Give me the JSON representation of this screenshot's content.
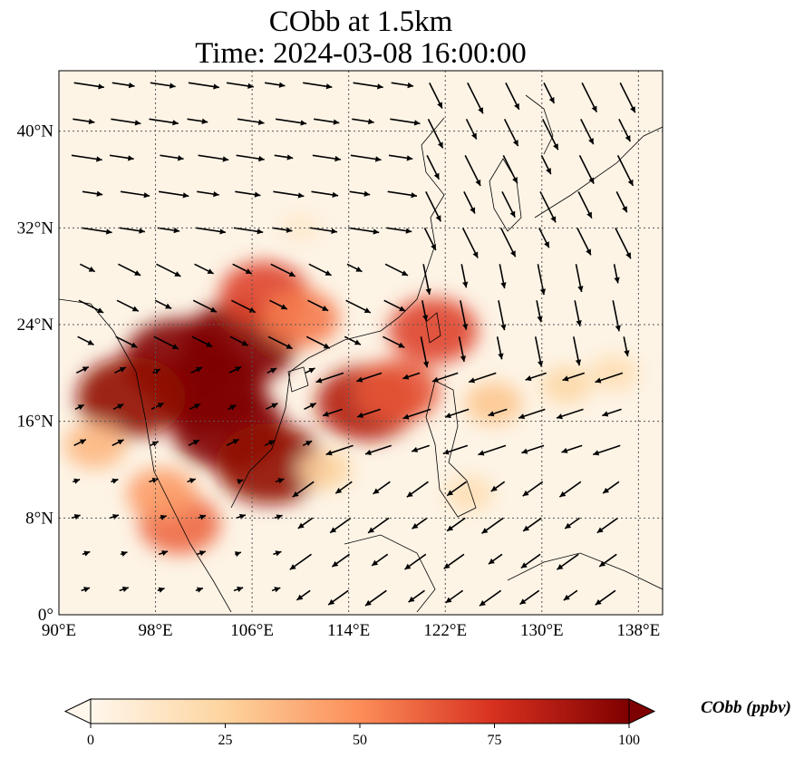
{
  "title": {
    "line1": "CObb at 1.5km",
    "line2": "Time: 2024-03-08 16:00:00"
  },
  "map": {
    "lon_range": [
      90,
      140
    ],
    "lat_range": [
      0,
      45
    ],
    "gridlines": true,
    "x_ticks": [
      {
        "value": 90,
        "label": "90°E"
      },
      {
        "value": 98,
        "label": "98°E"
      },
      {
        "value": 106,
        "label": "106°E"
      },
      {
        "value": 114,
        "label": "114°E"
      },
      {
        "value": 122,
        "label": "122°E"
      },
      {
        "value": 130,
        "label": "130°E"
      },
      {
        "value": 138,
        "label": "138°E"
      }
    ],
    "y_ticks": [
      {
        "value": 0,
        "label": "0°"
      },
      {
        "value": 8,
        "label": "8°N"
      },
      {
        "value": 16,
        "label": "16°N"
      },
      {
        "value": 24,
        "label": "24°N"
      },
      {
        "value": 32,
        "label": "32°N"
      },
      {
        "value": 40,
        "label": "40°N"
      }
    ]
  },
  "colorbar": {
    "label": "CObb (ppbv)",
    "min": 0,
    "max": 100,
    "extend": "both",
    "colormap": "OrRd",
    "ticks": [
      {
        "value": 0,
        "label": "0"
      },
      {
        "value": 25,
        "label": "25"
      },
      {
        "value": 50,
        "label": "50"
      },
      {
        "value": 75,
        "label": "75"
      },
      {
        "value": 100,
        "label": "100"
      }
    ]
  },
  "colors": {
    "background": "#fdf4e6",
    "low": "#fdd7a8",
    "mid": "#ef6a4b",
    "high": "#7a0000",
    "wind": "#000000",
    "grid": "#555555"
  },
  "plumes": [
    {
      "lon": 102.5,
      "lat": 18.5,
      "level": 100
    },
    {
      "lon": 100.0,
      "lat": 21.0,
      "level": 100
    },
    {
      "lon": 105.0,
      "lat": 22.5,
      "level": 100
    },
    {
      "lon": 104.0,
      "lat": 15.5,
      "level": 100
    },
    {
      "lon": 107.5,
      "lat": 12.5,
      "level": 95
    },
    {
      "lon": 96.0,
      "lat": 18.0,
      "level": 95
    },
    {
      "lon": 107.0,
      "lat": 26.5,
      "level": 70
    },
    {
      "lon": 110.0,
      "lat": 24.5,
      "level": 55
    },
    {
      "lon": 115.5,
      "lat": 17.5,
      "level": 85
    },
    {
      "lon": 118.0,
      "lat": 18.5,
      "level": 65
    },
    {
      "lon": 121.0,
      "lat": 23.5,
      "level": 70
    },
    {
      "lon": 100.0,
      "lat": 7.5,
      "level": 60
    },
    {
      "lon": 98.5,
      "lat": 10.0,
      "level": 45
    },
    {
      "lon": 126.0,
      "lat": 17.5,
      "level": 30
    },
    {
      "lon": 132.0,
      "lat": 19.0,
      "level": 22
    },
    {
      "lon": 136.0,
      "lat": 20.0,
      "level": 18
    },
    {
      "lon": 112.0,
      "lat": 12.0,
      "level": 25
    },
    {
      "lon": 124.0,
      "lat": 10.0,
      "level": 18
    },
    {
      "lon": 110.0,
      "lat": 32.0,
      "level": 10
    },
    {
      "lon": 93.0,
      "lat": 14.0,
      "level": 35
    }
  ]
}
